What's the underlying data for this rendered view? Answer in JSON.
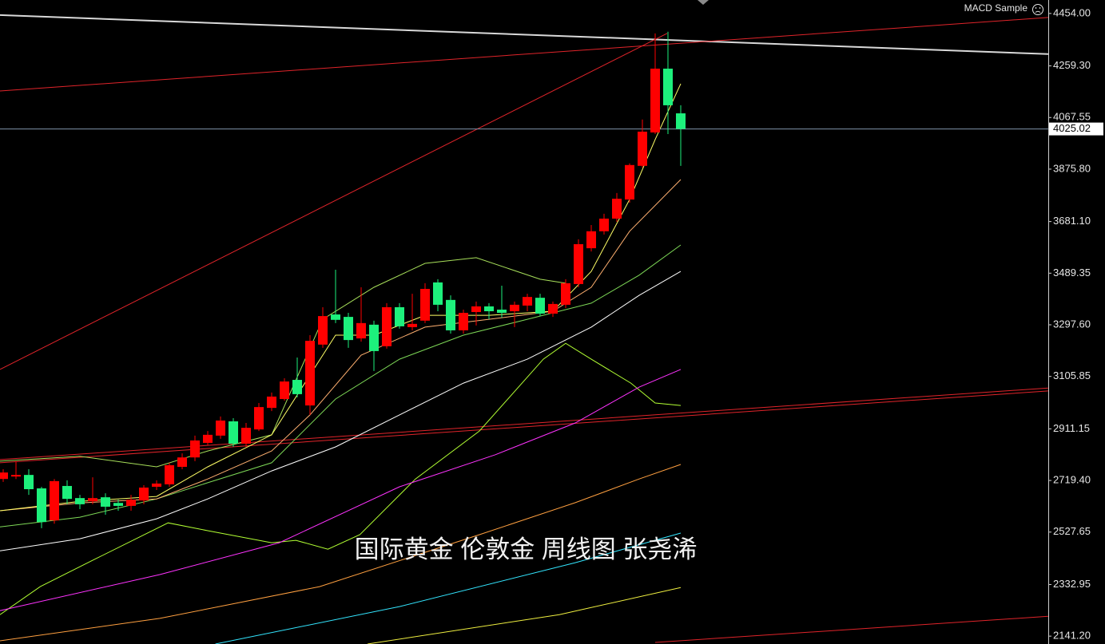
{
  "chart_data": {
    "type": "candlestick",
    "title": "国际黄金 伦敦金 周线图 张尧浠",
    "indicator": "MACD Sample",
    "current_price": 4025.02,
    "up_color": "#ff0000",
    "down_color": "#1df07c",
    "xlim": [
      -0.25,
      81.75
    ],
    "ylim": [
      2112,
      4504
    ],
    "yticks": [
      {
        "value": 4454.0,
        "label": "4454.00"
      },
      {
        "value": 4259.3,
        "label": "4259.30"
      },
      {
        "value": 4067.55,
        "label": "4067.55"
      },
      {
        "value": 3875.8,
        "label": "3875.80"
      },
      {
        "value": 3681.1,
        "label": "3681.10"
      },
      {
        "value": 3489.35,
        "label": "3489.35"
      },
      {
        "value": 3297.6,
        "label": "3297.60"
      },
      {
        "value": 3105.85,
        "label": "3105.85"
      },
      {
        "value": 2911.15,
        "label": "2911.15"
      },
      {
        "value": 2719.4,
        "label": "2719.40"
      },
      {
        "value": 2527.65,
        "label": "2527.65"
      },
      {
        "value": 2332.95,
        "label": "2332.95"
      },
      {
        "value": 2141.2,
        "label": "2141.20"
      }
    ],
    "open": [
      2725,
      2734,
      2740,
      2690,
      2571,
      2699,
      2654,
      2642,
      2657,
      2636,
      2625,
      2645,
      2696,
      2705,
      2770,
      2805,
      2859,
      2886,
      2939,
      2856,
      2909,
      2989,
      3022,
      3093,
      2998,
      3224,
      3336,
      3327,
      3247,
      3298,
      3218,
      3363,
      3289,
      3313,
      3455,
      3390,
      3277,
      3345,
      3366,
      3354,
      3348,
      3369,
      3398,
      3339,
      3372,
      3449,
      3582,
      3645,
      3692,
      3763,
      3888,
      4012,
      4249,
      4083
    ],
    "high": [
      2761,
      2791,
      2761,
      2696,
      2725,
      2720,
      2666,
      2731,
      2672,
      2648,
      2666,
      2702,
      2720,
      2785,
      2820,
      2886,
      2903,
      2957,
      2951,
      2933,
      3007,
      3046,
      3099,
      3176,
      3259,
      3363,
      3502,
      3342,
      3437,
      3313,
      3378,
      3378,
      3413,
      3452,
      3467,
      3407,
      3354,
      3384,
      3378,
      3443,
      3384,
      3413,
      3413,
      3384,
      3467,
      3615,
      3668,
      3710,
      3787,
      3897,
      4060,
      4380,
      4386,
      4113
    ],
    "low": [
      2714,
      2725,
      2666,
      2542,
      2559,
      2631,
      2613,
      2631,
      2592,
      2607,
      2607,
      2631,
      2684,
      2696,
      2761,
      2791,
      2850,
      2874,
      2844,
      2844,
      2903,
      2977,
      3016,
      3028,
      2963,
      3212,
      3304,
      3212,
      3235,
      3126,
      3209,
      3283,
      3277,
      3304,
      3348,
      3265,
      3265,
      3295,
      3318,
      3324,
      3289,
      3348,
      3330,
      3327,
      3360,
      3437,
      3570,
      3633,
      3680,
      3751,
      3882,
      4006,
      4006,
      3888
    ],
    "close": [
      2749,
      2740,
      2687,
      2565,
      2717,
      2651,
      2631,
      2654,
      2622,
      2625,
      2648,
      2693,
      2708,
      2776,
      2805,
      2868,
      2889,
      2942,
      2856,
      2915,
      2992,
      3031,
      3087,
      3040,
      3238,
      3330,
      3316,
      3241,
      3304,
      3200,
      3363,
      3292,
      3301,
      3431,
      3372,
      3277,
      3342,
      3366,
      3348,
      3342,
      3372,
      3401,
      3339,
      3375,
      3452,
      3597,
      3645,
      3692,
      3766,
      3891,
      4015,
      4249,
      4113,
      4025
    ],
    "overlays": [
      {
        "color": "#d9d9d9",
        "width": 2,
        "x": [
          -0.25,
          81.75
        ],
        "values": [
          4448,
          4303
        ]
      },
      {
        "color": "#e0242a",
        "width": 1,
        "x": [
          -0.25,
          81.75
        ],
        "values": [
          4166,
          4439
        ]
      },
      {
        "color": "#e0242a",
        "width": 1,
        "x": [
          -0.25,
          51.94
        ],
        "values": [
          3132,
          4380
        ]
      },
      {
        "color": "#e0242a",
        "width": 1,
        "x": [
          -0.25,
          81.75
        ],
        "values": [
          2797,
          3063
        ]
      },
      {
        "color": "#e0242a",
        "width": 1,
        "x": [
          -0.25,
          81.75
        ],
        "values": [
          2785,
          3052
        ]
      },
      {
        "color": "#e0242a",
        "width": 1,
        "x": [
          51,
          81.75
        ],
        "values": [
          2118,
          2215
        ]
      },
      {
        "color": "#b2ff33",
        "width": 1,
        "x": [
          -0.25,
          2.9,
          7.25,
          12.9,
          16,
          21,
          22.9,
          25.4,
          27.9,
          32.25,
          37.25,
          42.25,
          44,
          46,
          49.1,
          51,
          53
        ],
        "values": [
          2221,
          2325,
          2429,
          2562,
          2533,
          2488,
          2497,
          2464,
          2518,
          2725,
          2903,
          3170,
          3229,
          3170,
          3081,
          3007,
          2998
        ]
      },
      {
        "color": "#ff33ff",
        "width": 1,
        "x": [
          -0.25,
          12.25,
          21.6,
          31,
          38.5,
          44.75,
          49.75,
          53
        ],
        "values": [
          2236,
          2370,
          2488,
          2696,
          2815,
          2933,
          3066,
          3132
        ]
      },
      {
        "color": "#ffa040",
        "width": 1,
        "x": [
          -0.25,
          12.25,
          24.75,
          37.25,
          44.75,
          49.75,
          53
        ],
        "values": [
          2124,
          2207,
          2325,
          2518,
          2637,
          2725,
          2779
        ]
      },
      {
        "color": "#33e6ff",
        "width": 1,
        "x": [
          16.6,
          31,
          44.75,
          53
        ],
        "values": [
          2112,
          2251,
          2414,
          2524
        ]
      },
      {
        "color": "#f0f040",
        "width": 1,
        "x": [
          28.5,
          43.5,
          53
        ],
        "values": [
          2112,
          2221,
          2322
        ]
      },
      {
        "color": "#ffffff",
        "width": 1,
        "x": [
          -0.25,
          6,
          12,
          16,
          21,
          26,
          31,
          36,
          41,
          46,
          49.75,
          53
        ],
        "values": [
          2458,
          2503,
          2577,
          2651,
          2755,
          2844,
          2963,
          3081,
          3170,
          3289,
          3407,
          3496
        ]
      },
      {
        "color": "#7ed957",
        "width": 1,
        "x": [
          -0.25,
          6,
          12,
          16,
          21,
          26,
          31,
          36,
          41,
          46,
          49.75,
          53
        ],
        "values": [
          2547,
          2583,
          2651,
          2711,
          2785,
          3022,
          3170,
          3259,
          3318,
          3378,
          3482,
          3594
        ]
      },
      {
        "color": "#a8e05a",
        "width": 1,
        "x": [
          -0.25,
          6,
          12,
          16,
          21,
          25,
          29,
          33,
          37,
          42,
          44
        ],
        "values": [
          2791,
          2809,
          2770,
          2829,
          2889,
          3318,
          3437,
          3526,
          3547,
          3467,
          3452
        ]
      },
      {
        "color": "#ffb070",
        "width": 1,
        "x": [
          -0.25,
          6,
          12,
          16,
          21,
          24,
          28,
          33,
          38,
          43,
          46,
          49,
          53
        ],
        "values": [
          2607,
          2636,
          2651,
          2725,
          2829,
          2963,
          3185,
          3289,
          3318,
          3348,
          3437,
          3645,
          3837
        ]
      },
      {
        "color": "#ffff66",
        "width": 1,
        "x": [
          -0.25,
          6,
          12,
          16,
          21,
          24,
          26,
          29,
          33,
          38,
          43,
          46,
          49,
          51,
          53
        ],
        "values": [
          2607,
          2642,
          2660,
          2770,
          2889,
          3111,
          3259,
          3259,
          3333,
          3333,
          3348,
          3496,
          3763,
          3986,
          4193
        ]
      }
    ]
  }
}
